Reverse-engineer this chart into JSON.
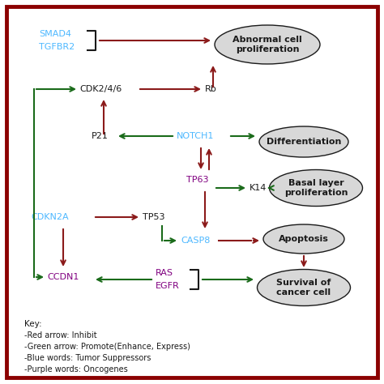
{
  "bg_color": "#ffffff",
  "border_color": "#8b0000",
  "red": "#8b1a1a",
  "green": "#1a6b1a",
  "blue": "#4db8ff",
  "purple": "#800080",
  "black": "#1a1a1a",
  "gray_fill": "#d8d8d8",
  "key_lines": [
    "Key:",
    "-Red arrow: Inhibit",
    "-Green arrow: Promote(Enhance, Express)",
    "-Blue words: Tumor Suppressors",
    "-Purple words: Oncogenes"
  ]
}
